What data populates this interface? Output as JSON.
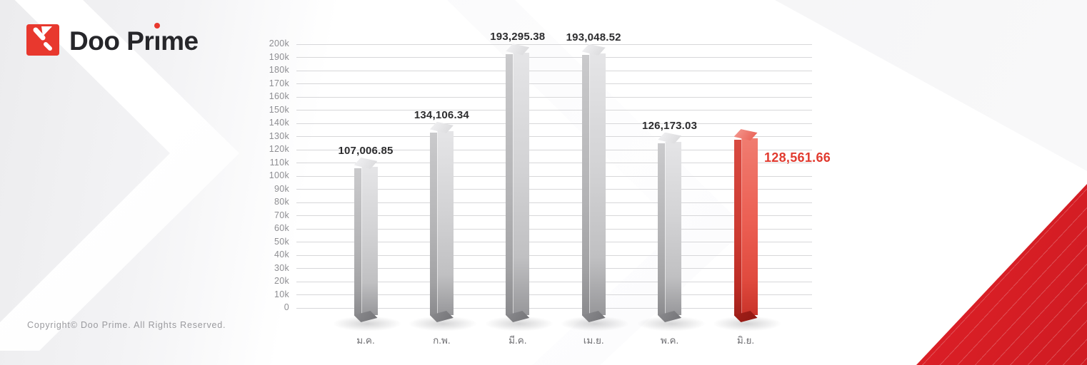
{
  "brand": {
    "name": "Doo Prime",
    "word_prefix": "Doo Pr",
    "i_char": "ı",
    "word_suffix": "me",
    "accent_color": "#e8382e",
    "text_color": "#26262a"
  },
  "footer": {
    "copyright": "Copyright© Doo Prime. All Rights Reserved."
  },
  "chart_data": {
    "type": "bar",
    "title": "",
    "xlabel": "",
    "ylabel": "",
    "categories": [
      "ม.ค.",
      "ก.พ.",
      "มี.ค.",
      "เม.ย.",
      "พ.ค.",
      "มิ.ย."
    ],
    "values": [
      107006.85,
      134106.34,
      193295.38,
      193048.52,
      126173.03,
      128561.66
    ],
    "value_labels": [
      "107,006.85",
      "134,106.34",
      "193,295.38",
      "193,048.52",
      "126,173.03",
      "128,561.66"
    ],
    "highlight_index": 5,
    "ylim": [
      0,
      200000
    ],
    "ytick_step": 10000,
    "ytick_labels": [
      "0",
      "10k",
      "20k",
      "30k",
      "40k",
      "50k",
      "60k",
      "70k",
      "80k",
      "90k",
      "100k",
      "110k",
      "120k",
      "130k",
      "140k",
      "150k",
      "160k",
      "170k",
      "180k",
      "190k",
      "200k"
    ],
    "grid": true,
    "legend": "none",
    "colors": {
      "bar_front": "#d2d2d4",
      "bar_side": "#b3b3b5",
      "highlight_front": "#ec6054",
      "highlight_side": "#cc3a31",
      "highlight_label": "#e13a2f",
      "value_label": "#2c2c2e",
      "axis_text": "#8e8e92",
      "gridline": "#d7d7d9",
      "corner_triangle": "#d81f26"
    }
  }
}
